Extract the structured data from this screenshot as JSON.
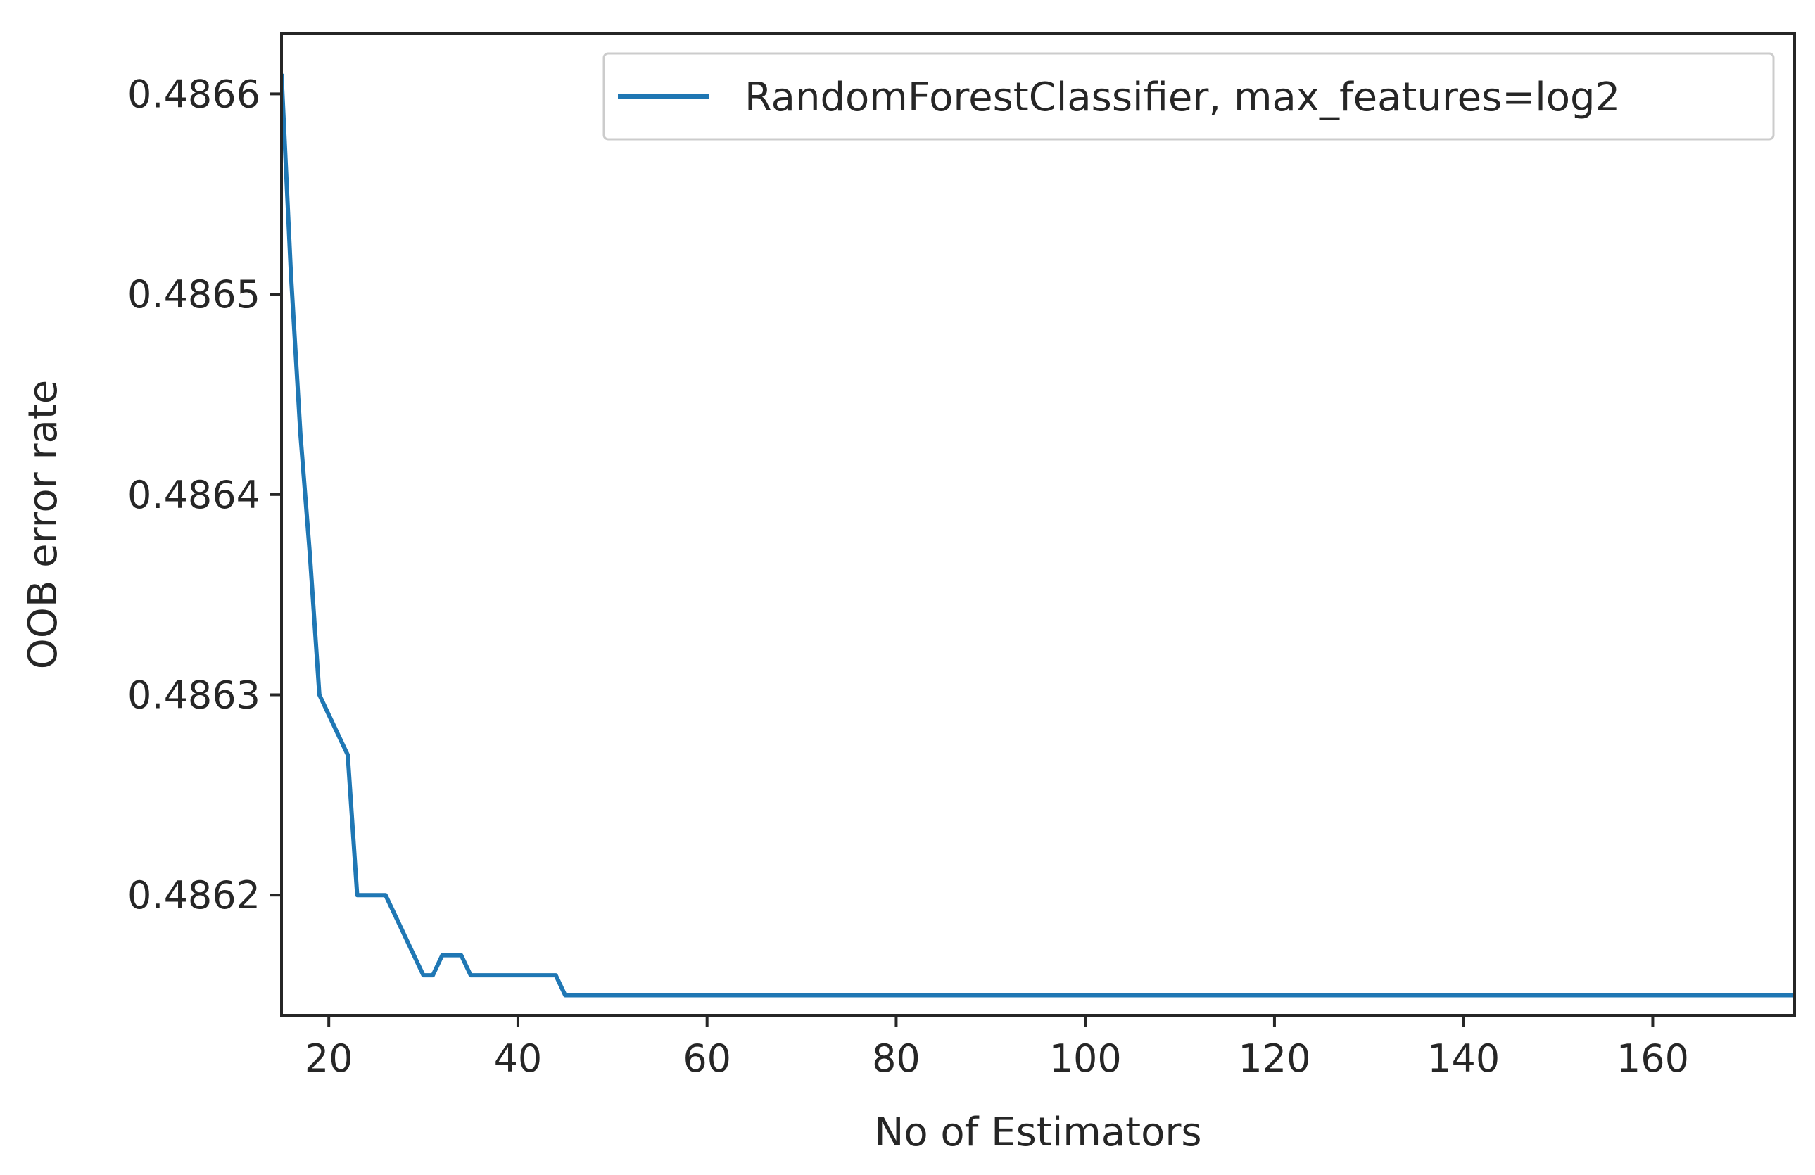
{
  "chart_data": {
    "type": "line",
    "title": "",
    "xlabel": "No of Estimators",
    "ylabel": "OOB error rate",
    "xlim": [
      15,
      175
    ],
    "ylim": [
      0.48614,
      0.48663
    ],
    "x_ticks": [
      20,
      40,
      60,
      80,
      100,
      120,
      140,
      160
    ],
    "y_ticks": [
      0.4862,
      0.4863,
      0.4864,
      0.4865,
      0.4866
    ],
    "grid": false,
    "legend_position": "top-right",
    "series": [
      {
        "name": "RandomForestClassifier, max_features=log2",
        "color": "#1f77b4",
        "x": [
          15,
          16,
          17,
          18,
          19,
          20,
          21,
          22,
          23,
          24,
          25,
          26,
          27,
          28,
          29,
          30,
          31,
          32,
          33,
          34,
          35,
          36,
          37,
          38,
          39,
          40,
          41,
          42,
          43,
          44,
          45,
          46,
          50,
          60,
          80,
          100,
          120,
          140,
          160,
          175
        ],
        "y": [
          0.48661,
          0.48651,
          0.48643,
          0.48637,
          0.4863,
          0.48629,
          0.48628,
          0.48627,
          0.4862,
          0.4862,
          0.4862,
          0.4862,
          0.48619,
          0.48618,
          0.48617,
          0.48616,
          0.48616,
          0.48617,
          0.48617,
          0.48617,
          0.48616,
          0.48616,
          0.48616,
          0.48616,
          0.48616,
          0.48616,
          0.48616,
          0.48616,
          0.48616,
          0.48616,
          0.48615,
          0.48615,
          0.48615,
          0.48615,
          0.48615,
          0.48615,
          0.48615,
          0.48615,
          0.48615,
          0.48615
        ]
      }
    ]
  }
}
